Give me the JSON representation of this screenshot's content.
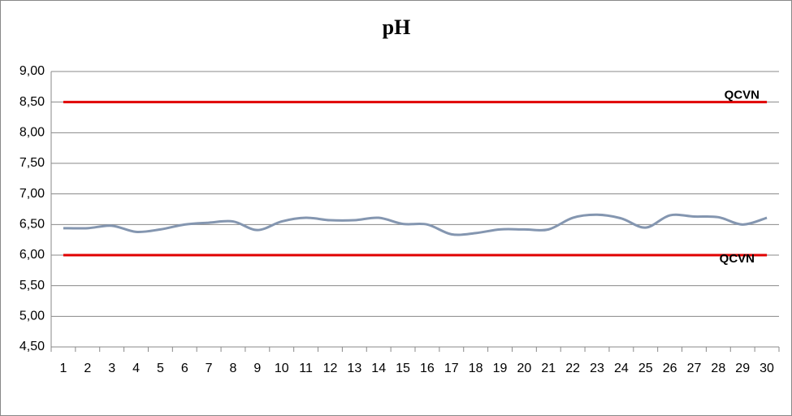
{
  "chart_data": {
    "type": "line",
    "title": "pH",
    "categories": [
      "1",
      "2",
      "3",
      "4",
      "5",
      "6",
      "7",
      "8",
      "9",
      "10",
      "11",
      "12",
      "13",
      "14",
      "15",
      "16",
      "17",
      "18",
      "19",
      "20",
      "21",
      "22",
      "23",
      "24",
      "25",
      "26",
      "27",
      "28",
      "29",
      "30"
    ],
    "series": [
      {
        "color": "#8496b0",
        "values": [
          6.44,
          6.44,
          6.48,
          6.38,
          6.42,
          6.5,
          6.53,
          6.55,
          6.41,
          6.55,
          6.61,
          6.57,
          6.57,
          6.61,
          6.51,
          6.5,
          6.34,
          6.36,
          6.42,
          6.42,
          6.42,
          6.61,
          6.66,
          6.6,
          6.45,
          6.65,
          6.63,
          6.62,
          6.5,
          6.61
        ]
      },
      {
        "name": "QCVN",
        "color": "#e00000",
        "values": [
          8.5,
          8.5,
          8.5,
          8.5,
          8.5,
          8.5,
          8.5,
          8.5,
          8.5,
          8.5,
          8.5,
          8.5,
          8.5,
          8.5,
          8.5,
          8.5,
          8.5,
          8.5,
          8.5,
          8.5,
          8.5,
          8.5,
          8.5,
          8.5,
          8.5,
          8.5,
          8.5,
          8.5,
          8.5,
          8.5
        ]
      },
      {
        "name": "QCVN",
        "color": "#e00000",
        "values": [
          6,
          6,
          6,
          6,
          6,
          6,
          6,
          6,
          6,
          6,
          6,
          6,
          6,
          6,
          6,
          6,
          6,
          6,
          6,
          6,
          6,
          6,
          6,
          6,
          6,
          6,
          6,
          6,
          6,
          6
        ]
      }
    ],
    "ylim": [
      4.5,
      9
    ],
    "yticks": [
      {
        "value": 4.5,
        "label": "4,50"
      },
      {
        "value": 5,
        "label": "5,00"
      },
      {
        "value": 5.5,
        "label": "5,50"
      },
      {
        "value": 6,
        "label": "6,00"
      },
      {
        "value": 6.5,
        "label": "6,50"
      },
      {
        "value": 7,
        "label": "7,00"
      },
      {
        "value": 7.5,
        "label": "7,50"
      },
      {
        "value": 8,
        "label": "8,00"
      },
      {
        "value": 8.5,
        "label": "8,50"
      },
      {
        "value": 9,
        "label": "9,00"
      }
    ],
    "grid": true
  }
}
